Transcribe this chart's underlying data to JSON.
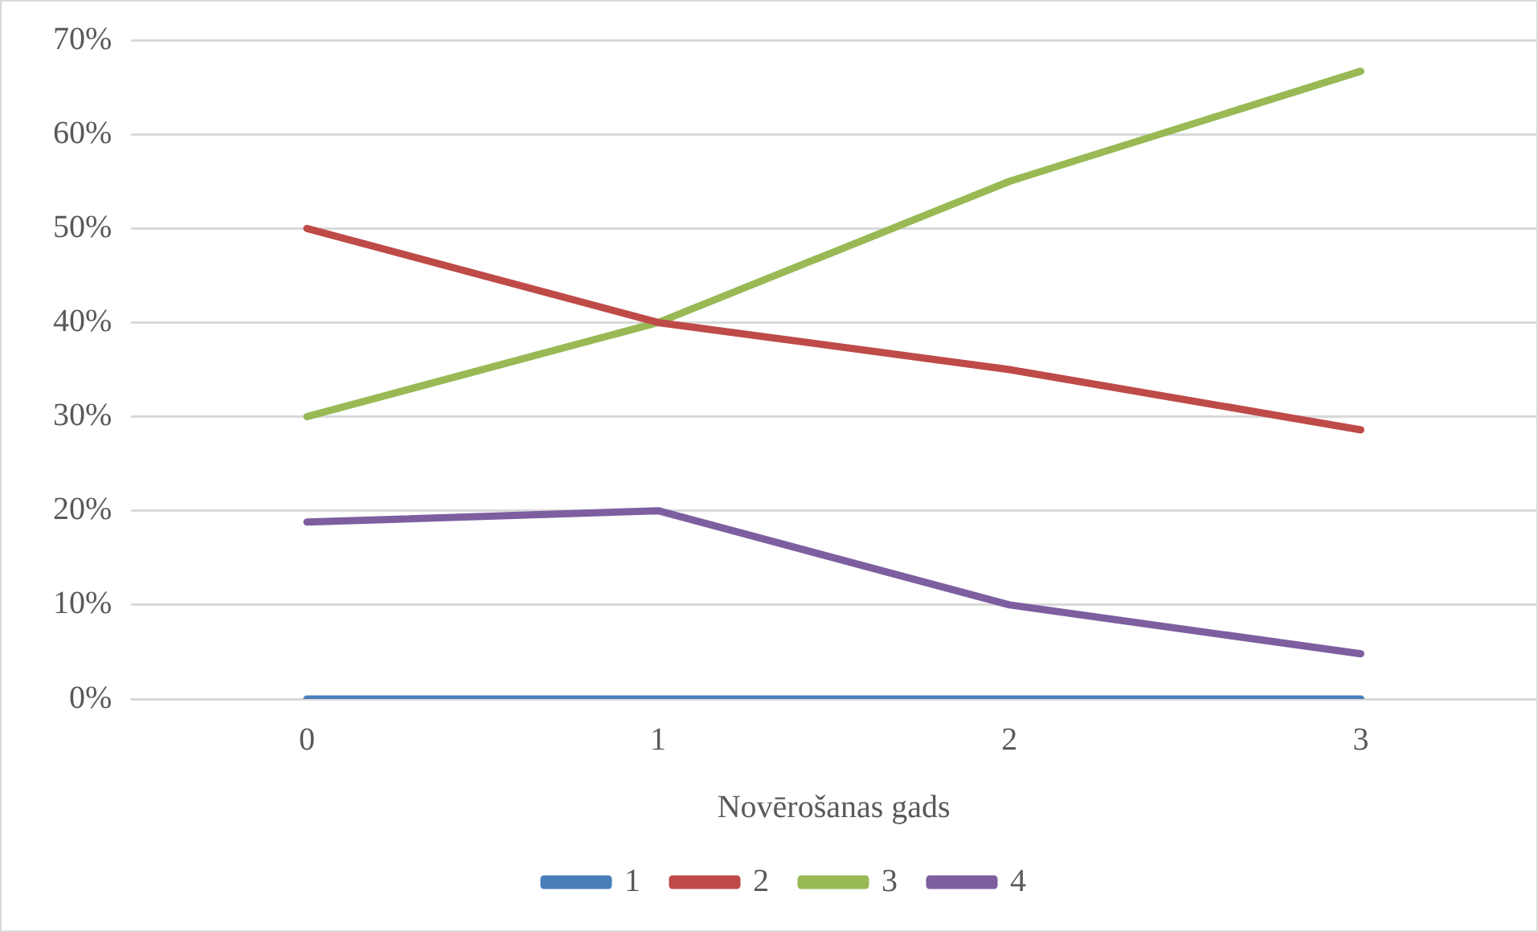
{
  "chart_data": {
    "type": "line",
    "xlabel": "Novērošanas gads",
    "categories": [
      "0",
      "1",
      "2",
      "3"
    ],
    "series": [
      {
        "name": "1",
        "color": "#4a7ebb",
        "values": [
          0,
          0,
          0,
          0
        ]
      },
      {
        "name": "2",
        "color": "#be4b48",
        "values": [
          50,
          40,
          35,
          28.6
        ]
      },
      {
        "name": "3",
        "color": "#98b954",
        "values": [
          30,
          40,
          55,
          66.7
        ]
      },
      {
        "name": "4",
        "color": "#7d5fa0",
        "values": [
          18.8,
          20,
          10,
          4.8
        ]
      }
    ],
    "ylim": [
      0,
      70
    ],
    "yticks": [
      {
        "value": 0,
        "label": "0%"
      },
      {
        "value": 10,
        "label": "10%"
      },
      {
        "value": 20,
        "label": "20%"
      },
      {
        "value": 30,
        "label": "30%"
      },
      {
        "value": 40,
        "label": "40%"
      },
      {
        "value": 50,
        "label": "50%"
      },
      {
        "value": 60,
        "label": "60%"
      },
      {
        "value": 70,
        "label": "70%"
      }
    ],
    "grid": "y",
    "legend": "bottom",
    "marker": "none",
    "line_style": "solid"
  }
}
